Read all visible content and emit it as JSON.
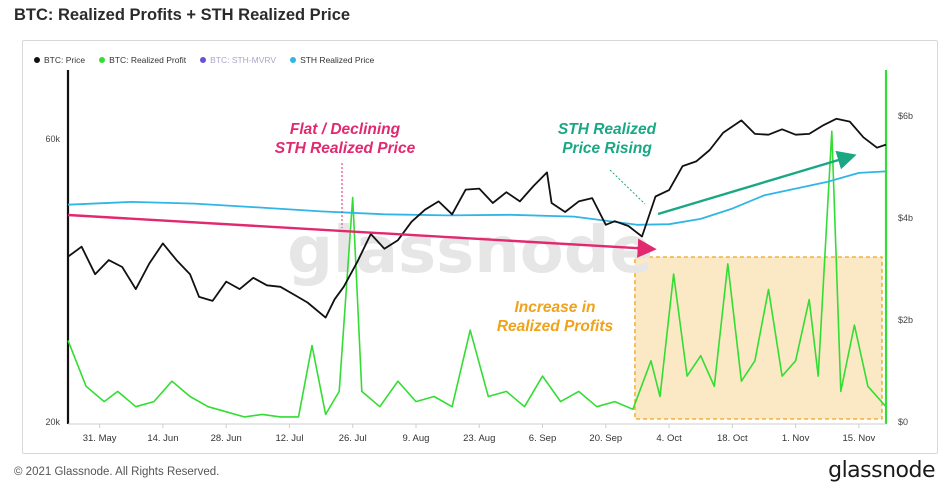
{
  "title": "BTC: Realized Profits + STH Realized Price",
  "footer": {
    "copyright": "© 2021 Glassnode. All Rights Reserved.",
    "brand": "glassnode",
    "watermark": "glassnode"
  },
  "legend": [
    {
      "label": "BTC: Price",
      "color": "#111111",
      "muted": false
    },
    {
      "label": "BTC: Realized Profit",
      "color": "#33dd33",
      "muted": false
    },
    {
      "label": "BTC: STH-MVRV",
      "color": "#6a4fd8",
      "muted": true
    },
    {
      "label": "STH Realized Price",
      "color": "#2fb6e6",
      "muted": false
    }
  ],
  "annotations": {
    "flat": "Flat / Declining\nSTH Realized Price",
    "rising": "STH Realized\nPrice Rising",
    "increase": "Increase in\nRealized Profits"
  },
  "colors": {
    "price": "#111111",
    "profit": "#33dd33",
    "sth": "#2fb6e6",
    "flat_arrow": "#e2296f",
    "rising_arrow": "#1aa884",
    "highlight_fill": "#fbe9c6",
    "highlight_border": "#f0a21a",
    "increase_text": "#f0a21a"
  },
  "chart_data": {
    "type": "line",
    "x_tick_labels": [
      "31. May",
      "14. Jun",
      "28. Jun",
      "12. Jul",
      "26. Jul",
      "9. Aug",
      "23. Aug",
      "6. Sep",
      "20. Sep",
      "4. Oct",
      "18. Oct",
      "1. Nov",
      "15. Nov"
    ],
    "x_range": [
      "2021-05-24",
      "2021-11-21"
    ],
    "y_left": {
      "scale": "log",
      "range": [
        20000,
        70000
      ],
      "ticks": [
        "20k",
        "60k"
      ],
      "tick_values": [
        20000,
        60000
      ]
    },
    "y_right": {
      "scale": "linear",
      "range": [
        0,
        6000000000
      ],
      "ticks": [
        "$0",
        "$2b",
        "$4b",
        "$6b"
      ],
      "tick_values": [
        0,
        2000000000,
        4000000000,
        6000000000
      ]
    },
    "series": [
      {
        "name": "BTC: Price",
        "axis": "left",
        "values": [
          [
            "2021-05-24",
            38000
          ],
          [
            "2021-05-27",
            39500
          ],
          [
            "2021-05-30",
            35500
          ],
          [
            "2021-06-02",
            37500
          ],
          [
            "2021-06-05",
            36500
          ],
          [
            "2021-06-08",
            33500
          ],
          [
            "2021-06-11",
            37000
          ],
          [
            "2021-06-14",
            40000
          ],
          [
            "2021-06-17",
            37500
          ],
          [
            "2021-06-20",
            35500
          ],
          [
            "2021-06-22",
            32500
          ],
          [
            "2021-06-25",
            32000
          ],
          [
            "2021-06-28",
            34500
          ],
          [
            "2021-07-01",
            33500
          ],
          [
            "2021-07-04",
            35000
          ],
          [
            "2021-07-07",
            34000
          ],
          [
            "2021-07-10",
            33800
          ],
          [
            "2021-07-13",
            32800
          ],
          [
            "2021-07-16",
            31800
          ],
          [
            "2021-07-20",
            30000
          ],
          [
            "2021-07-22",
            32200
          ],
          [
            "2021-07-24",
            33800
          ],
          [
            "2021-07-27",
            37200
          ],
          [
            "2021-07-30",
            41500
          ],
          [
            "2021-08-02",
            39200
          ],
          [
            "2021-08-05",
            40500
          ],
          [
            "2021-08-08",
            43500
          ],
          [
            "2021-08-11",
            45600
          ],
          [
            "2021-08-14",
            47100
          ],
          [
            "2021-08-17",
            44800
          ],
          [
            "2021-08-20",
            49300
          ],
          [
            "2021-08-23",
            49500
          ],
          [
            "2021-08-26",
            46800
          ],
          [
            "2021-08-29",
            48800
          ],
          [
            "2021-09-01",
            47100
          ],
          [
            "2021-09-04",
            50000
          ],
          [
            "2021-09-07",
            52700
          ],
          [
            "2021-09-08",
            46800
          ],
          [
            "2021-09-11",
            45200
          ],
          [
            "2021-09-14",
            47100
          ],
          [
            "2021-09-17",
            47700
          ],
          [
            "2021-09-20",
            43000
          ],
          [
            "2021-09-22",
            43600
          ],
          [
            "2021-09-25",
            42800
          ],
          [
            "2021-09-28",
            41100
          ],
          [
            "2021-10-01",
            48000
          ],
          [
            "2021-10-04",
            49200
          ],
          [
            "2021-10-07",
            54000
          ],
          [
            "2021-10-10",
            55000
          ],
          [
            "2021-10-13",
            57500
          ],
          [
            "2021-10-16",
            61500
          ],
          [
            "2021-10-20",
            64500
          ],
          [
            "2021-10-23",
            61200
          ],
          [
            "2021-10-26",
            61000
          ],
          [
            "2021-10-29",
            62300
          ],
          [
            "2021-11-01",
            61000
          ],
          [
            "2021-11-04",
            61200
          ],
          [
            "2021-11-07",
            63200
          ],
          [
            "2021-11-10",
            64900
          ],
          [
            "2021-11-13",
            64200
          ],
          [
            "2021-11-16",
            60400
          ],
          [
            "2021-11-19",
            58000
          ],
          [
            "2021-11-21",
            58700
          ]
        ]
      },
      {
        "name": "STH Realized Price",
        "axis": "left",
        "values": [
          [
            "2021-05-24",
            46500
          ],
          [
            "2021-06-07",
            47000
          ],
          [
            "2021-06-21",
            46700
          ],
          [
            "2021-07-05",
            46000
          ],
          [
            "2021-07-19",
            45300
          ],
          [
            "2021-08-02",
            44800
          ],
          [
            "2021-08-16",
            44600
          ],
          [
            "2021-08-30",
            44700
          ],
          [
            "2021-09-13",
            44400
          ],
          [
            "2021-09-27",
            43000
          ],
          [
            "2021-10-04",
            43100
          ],
          [
            "2021-10-11",
            44000
          ],
          [
            "2021-10-18",
            45800
          ],
          [
            "2021-10-25",
            48200
          ],
          [
            "2021-11-01",
            49500
          ],
          [
            "2021-11-08",
            50800
          ],
          [
            "2021-11-15",
            52600
          ],
          [
            "2021-11-21",
            52900
          ]
        ]
      },
      {
        "name": "BTC: Realized Profit",
        "axis": "right",
        "values": [
          [
            "2021-05-24",
            1600000000
          ],
          [
            "2021-05-28",
            700000000
          ],
          [
            "2021-06-01",
            400000000
          ],
          [
            "2021-06-04",
            600000000
          ],
          [
            "2021-06-08",
            300000000
          ],
          [
            "2021-06-12",
            400000000
          ],
          [
            "2021-06-16",
            800000000
          ],
          [
            "2021-06-20",
            500000000
          ],
          [
            "2021-06-24",
            300000000
          ],
          [
            "2021-06-28",
            200000000
          ],
          [
            "2021-07-02",
            100000000
          ],
          [
            "2021-07-06",
            150000000
          ],
          [
            "2021-07-10",
            100000000
          ],
          [
            "2021-07-14",
            100000000
          ],
          [
            "2021-07-17",
            1500000000
          ],
          [
            "2021-07-20",
            150000000
          ],
          [
            "2021-07-23",
            600000000
          ],
          [
            "2021-07-26",
            4400000000
          ],
          [
            "2021-07-28",
            600000000
          ],
          [
            "2021-08-01",
            300000000
          ],
          [
            "2021-08-05",
            800000000
          ],
          [
            "2021-08-09",
            400000000
          ],
          [
            "2021-08-13",
            500000000
          ],
          [
            "2021-08-17",
            300000000
          ],
          [
            "2021-08-21",
            1800000000
          ],
          [
            "2021-08-25",
            500000000
          ],
          [
            "2021-08-29",
            600000000
          ],
          [
            "2021-09-02",
            300000000
          ],
          [
            "2021-09-06",
            900000000
          ],
          [
            "2021-09-10",
            400000000
          ],
          [
            "2021-09-14",
            600000000
          ],
          [
            "2021-09-18",
            300000000
          ],
          [
            "2021-09-22",
            400000000
          ],
          [
            "2021-09-26",
            250000000
          ],
          [
            "2021-09-30",
            1200000000
          ],
          [
            "2021-10-02",
            500000000
          ],
          [
            "2021-10-05",
            2900000000
          ],
          [
            "2021-10-08",
            900000000
          ],
          [
            "2021-10-11",
            1300000000
          ],
          [
            "2021-10-14",
            700000000
          ],
          [
            "2021-10-17",
            3100000000
          ],
          [
            "2021-10-20",
            800000000
          ],
          [
            "2021-10-23",
            1200000000
          ],
          [
            "2021-10-26",
            2600000000
          ],
          [
            "2021-10-29",
            900000000
          ],
          [
            "2021-11-01",
            1200000000
          ],
          [
            "2021-11-04",
            2400000000
          ],
          [
            "2021-11-06",
            900000000
          ],
          [
            "2021-11-09",
            5700000000
          ],
          [
            "2021-11-11",
            600000000
          ],
          [
            "2021-11-14",
            1900000000
          ],
          [
            "2021-11-17",
            700000000
          ],
          [
            "2021-11-21",
            300000000
          ]
        ]
      }
    ],
    "grid": false,
    "legend_position": "top-left"
  }
}
